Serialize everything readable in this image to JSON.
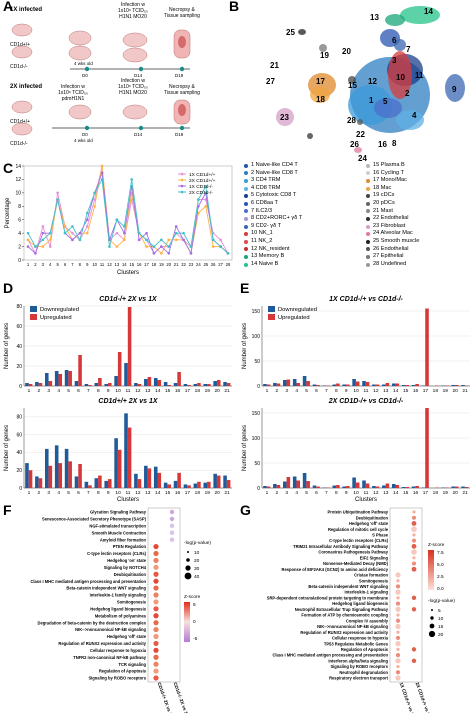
{
  "panels": {
    "a": "A",
    "b": "B",
    "c": "C",
    "d": "D",
    "e": "E",
    "f": "F",
    "g": "G"
  },
  "panel_a": {
    "row1": {
      "label": "1X infected",
      "pig_top": "CD1d+/+",
      "pig_bottom": "CD1d-/-",
      "step1": "Infection w\n1x10⁶ TCID₅₀\nH1N1 MO20",
      "step2": "Necropsy &\nTissue sampling",
      "timeline": [
        "D0",
        "D14",
        "D19"
      ],
      "age": "4 wks old"
    },
    "row2": {
      "label": "2X infected",
      "pig_top": "CD1d+/+",
      "pig_bottom": "CD1d-/-",
      "step0": "Infection w\n1x10⁶ TCID₅₀\npdmH1N1",
      "step1": "Infection w\n1x10⁶ TCID₅₀\nH1N1 MO20",
      "step2": "Necropsy &\nTissue sampling",
      "timeline": [
        "D0",
        "D14",
        "D19"
      ],
      "age": "4 wks old"
    }
  },
  "panel_b": {
    "cluster_labels": [
      "1",
      "2",
      "3",
      "4",
      "5",
      "6",
      "7",
      "8",
      "9",
      "10",
      "11",
      "12",
      "13",
      "14",
      "15",
      "16",
      "17",
      "18",
      "19",
      "20",
      "21",
      "22",
      "23",
      "24",
      "25",
      "26",
      "27",
      "28"
    ],
    "legend_left": [
      "1 Naive-like CD4 T",
      "2 Naive-like CD8 T",
      "3 CD4 TRM",
      "4 CD8 TRM",
      "5 Cytotoxic CD8 T",
      "6 CD8aa T",
      "7 ILC2/3",
      "8 CD2+RORC+ γδ T",
      "9 CD2- γδ T",
      "10 NK_1",
      "11 NK_2",
      "12 NK_resident",
      "13 Memory B",
      "14 Naive B"
    ],
    "legend_right": [
      "15 Plasma B",
      "16 Cycling T",
      "17 Mono/Mac",
      "18 Mac",
      "19 cDCs",
      "20 pDCs",
      "21 Mast",
      "22 Endothelial",
      "23 Fibroblast",
      "24 Alveolar Mac",
      "25 Smooth muscle",
      "26 Endothelial",
      "27 Epithelial",
      "28 Undefined"
    ],
    "colors": [
      "#1f5aa6",
      "#2f7fc0",
      "#3a9ad9",
      "#5fb0e6",
      "#1c3f8a",
      "#2a56b0",
      "#4b6fcb",
      "#9c9cd6",
      "#3b67b1",
      "#d73b3b",
      "#e0484a",
      "#c92d2d",
      "#1aa57a",
      "#26c38a",
      "#b9b9b9",
      "#cfcfcf",
      "#e08a2c",
      "#f0a340",
      "#444444",
      "#666666",
      "#888888",
      "#333333",
      "#d6a0c8",
      "#e07aa0",
      "#222222",
      "#555555",
      "#777777",
      "#999999"
    ]
  },
  "panel_c": {
    "ylabel": "Percentage",
    "xlabel": "Clusters",
    "legend": [
      "1X CD1d+/+",
      "2X CD1d+/+",
      "1X CD1d-/-",
      "2X CD1d-/-"
    ]
  },
  "panel_d": {
    "top_title": "CD1d-/+ 2X vs 1X",
    "bottom_title": "CD1d+/+ 2X vs 1X",
    "legend": [
      "Downregulated",
      "Upregulated"
    ],
    "ylabel": "Number of genes",
    "xlabel": "Clusters"
  },
  "panel_e": {
    "top_title": "1X CD1d-/+ vs CD1d-/-",
    "bottom_title": "2X CD1D-/+ vs CD1d-/-",
    "legend": [
      "Downregulated",
      "Upregulated"
    ],
    "ylabel": "Number of genes",
    "xlabel": "Clusters"
  },
  "panel_f": {
    "pathways": [
      "Glycation Signaling Pathway",
      "Senescence-Associated Secretory Phenotype (SASP)",
      "NGF-stimulated transcription",
      "Smooth Muscle Contraction",
      "Amyloid fiber formation",
      "PTEN Regulation",
      "C-type lectin receptors (CLRs)",
      "Hedgehog 'on' state",
      "Signaling by NOTCH4",
      "Deubiquitination",
      "Class I MHC mediated antigen processing and presentation",
      "Beta-catenin independent WNT signaling",
      "Interleukin-1 family signaling",
      "Somitogenesis",
      "Hedgehog ligand biogenesis",
      "Metabolism of polyamines",
      "Degradation of beta-catenin by the destruction complex",
      "NIK-->noncanonical NF-kB signaling",
      "Hedgehog 'off' state",
      "Regulation of RUNX2 expression and activity",
      "Cellular response to hypoxia",
      "TNFR2 non-canonical NF-kB pathway",
      "TCR signaling",
      "Regulation of Apoptosis",
      "Signaling by ROBO receptors"
    ],
    "columns": [
      "CD1d-/+ 2X vs 1X",
      "CD1d-/- 2X vs 1X"
    ],
    "legend_size_title": "-log(p-value)",
    "legend_sizes": [
      "10",
      "20",
      "30",
      "40"
    ],
    "legend_color_title": "Z-score",
    "legend_colors": [
      "5",
      "0",
      "-5"
    ]
  },
  "panel_g": {
    "pathways": [
      "Protein Ubiquitination Pathway",
      "Deubiquitination",
      "Hedgehog 'off' state",
      "Regulation of mitotic cell cycle",
      "S Phase",
      "C-type lectin receptors (CLRs)",
      "TRIM21 Intracellular Antibody Signaling Pathway",
      "Coronavirus Pathogenesis Pathway",
      "EIF2 Signaling",
      "Nonsense-Mediated Decay (NMD)",
      "Response of EIF2AK4 (GCN2) to amino acid deficiency",
      "Cristae formation",
      "Somitogenesis",
      "Beta-catenin independent WNT signaling",
      "Interleukin-1 signaling",
      "SRP-dependent cotranslational protein targeting to membrane",
      "Hedgehog ligand biogenesis",
      "Neutrophil Extracellular Trap Signaling Pathway",
      "Formation of ATP by chemiosmotic coupling",
      "Complex IV assembly",
      "NIK-->noncanonical NF-kB signaling",
      "Regulation of RUNX2 expression and activity",
      "Cellular response to hypoxia",
      "TP53 Regulates Metabolic Genes",
      "Regulation of Apoptosis",
      "Class I MHC mediated antigen processing and presentation",
      "Interferon alpha/beta signaling",
      "Signaling by ROBO receptors",
      "Neutrophil degranulation",
      "Respiratory electron transport"
    ],
    "columns": [
      "1X CD1d-/+ vs CD1d-/-",
      "2X CD1d-/+ vs CD1d-/-"
    ],
    "legend_color_title": "Z-score",
    "legend_colors": [
      "7.5",
      "5.0",
      "2.5",
      "0.0"
    ],
    "legend_size_title": "-log(p-value)",
    "legend_sizes": [
      "5",
      "10",
      "15",
      "20"
    ]
  },
  "chart_data": [
    {
      "type": "line",
      "panel": "C",
      "xlabel": "Clusters",
      "ylabel": "Percentage",
      "ylim": [
        0,
        14
      ],
      "x": [
        1,
        2,
        3,
        4,
        5,
        6,
        7,
        8,
        9,
        10,
        11,
        12,
        13,
        14,
        15,
        16,
        17,
        18,
        19,
        20,
        21,
        22,
        23,
        24,
        25,
        26,
        27,
        28
      ],
      "series": [
        {
          "name": "1X CD1d+/+",
          "color": "#e98fd6",
          "values": [
            3,
            1,
            5,
            2,
            10,
            5,
            4,
            3,
            5,
            9,
            14,
            3,
            4,
            3,
            9,
            4,
            3,
            1,
            2,
            2,
            4,
            3,
            2,
            9,
            9,
            4,
            3,
            1
          ]
        },
        {
          "name": "2X CD1d+/+",
          "color": "#ffb347",
          "values": [
            3,
            2,
            2,
            3,
            9,
            5,
            3,
            4,
            4,
            8,
            14,
            3,
            2,
            3,
            10,
            4,
            2,
            2,
            1,
            3,
            3,
            3,
            1,
            7,
            8,
            2,
            2,
            1
          ]
        },
        {
          "name": "1X CD1d-/-",
          "color": "#a46de8",
          "values": [
            2,
            1,
            4,
            4,
            9,
            4,
            3,
            4,
            6,
            10,
            13,
            3,
            6,
            4,
            11,
            3,
            4,
            1,
            2,
            1,
            5,
            3,
            1,
            8,
            10,
            3,
            2,
            1
          ]
        },
        {
          "name": "2X CD1d-/-",
          "color": "#40c2c8",
          "values": [
            4,
            2,
            3,
            4,
            9,
            4,
            5,
            3,
            7,
            10,
            12,
            2,
            6,
            5,
            12,
            4,
            3,
            2,
            3,
            2,
            4,
            4,
            2,
            9,
            11,
            3,
            2,
            1
          ]
        }
      ]
    },
    {
      "type": "bar",
      "panel": "D-top",
      "title": "CD1d-/+ 2X vs 1X",
      "xlabel": "Clusters",
      "ylabel": "Number of genes",
      "categories": [
        "1",
        "2",
        "3",
        "4",
        "5",
        "6",
        "7",
        "8",
        "9",
        "10",
        "11",
        "12",
        "13",
        "14",
        "15",
        "16",
        "17",
        "18",
        "19",
        "20",
        "21"
      ],
      "series": [
        {
          "name": "Downregulated",
          "color": "#1f5a99",
          "values": [
            3,
            4,
            13,
            15,
            16,
            5,
            2,
            3,
            2,
            10,
            23,
            3,
            7,
            8,
            4,
            3,
            2,
            2,
            2,
            5,
            4
          ]
        },
        {
          "name": "Upregulated",
          "color": "#d6383a",
          "values": [
            2,
            3,
            5,
            12,
            15,
            31,
            1,
            8,
            3,
            34,
            79,
            2,
            9,
            6,
            1,
            14,
            1,
            3,
            2,
            6,
            3
          ]
        }
      ]
    },
    {
      "type": "bar",
      "panel": "D-bottom",
      "title": "CD1d+/+ 2X vs 1X",
      "xlabel": "Clusters",
      "ylabel": "Number of genes",
      "categories": [
        "1",
        "2",
        "3",
        "4",
        "5",
        "6",
        "7",
        "8",
        "9",
        "10",
        "11",
        "12",
        "13",
        "14",
        "15",
        "16",
        "17",
        "18",
        "19",
        "20",
        "21"
      ],
      "series": [
        {
          "name": "Downregulated",
          "color": "#1f5a99",
          "values": [
            28,
            13,
            44,
            48,
            44,
            13,
            7,
            11,
            8,
            56,
            84,
            16,
            25,
            24,
            6,
            8,
            4,
            5,
            6,
            16,
            14
          ]
        },
        {
          "name": "Upregulated",
          "color": "#d6383a",
          "values": [
            20,
            11,
            25,
            28,
            30,
            27,
            3,
            14,
            10,
            43,
            68,
            10,
            22,
            17,
            4,
            17,
            3,
            7,
            7,
            14,
            9
          ]
        }
      ]
    },
    {
      "type": "bar",
      "panel": "E-top",
      "title": "1X CD1d-/+ vs CD1d-/-",
      "xlabel": "Clusters",
      "ylabel": "Number of genes",
      "categories": [
        "1",
        "2",
        "3",
        "4",
        "5",
        "6",
        "7",
        "8",
        "9",
        "10",
        "11",
        "12",
        "13",
        "14",
        "15",
        "16",
        "17",
        "18",
        "19",
        "20",
        "21"
      ],
      "series": [
        {
          "name": "Downregulated",
          "color": "#1f5a99",
          "values": [
            4,
            6,
            12,
            14,
            20,
            3,
            1,
            3,
            3,
            14,
            10,
            3,
            3,
            5,
            2,
            2,
            1,
            0,
            1,
            2,
            2
          ]
        },
        {
          "name": "Upregulated",
          "color": "#d6383a",
          "values": [
            3,
            5,
            13,
            6,
            10,
            2,
            1,
            5,
            3,
            9,
            8,
            3,
            6,
            5,
            2,
            4,
            155,
            1,
            1,
            2,
            1
          ]
        }
      ]
    },
    {
      "type": "bar",
      "panel": "E-bottom",
      "title": "2X CD1D-/+ vs CD1d-/-",
      "xlabel": "Clusters",
      "ylabel": "Number of genes",
      "categories": [
        "1",
        "2",
        "3",
        "4",
        "5",
        "6",
        "7",
        "8",
        "9",
        "10",
        "11",
        "12",
        "13",
        "14",
        "15",
        "16",
        "17",
        "18",
        "19",
        "20",
        "21"
      ],
      "series": [
        {
          "name": "Downregulated",
          "color": "#1f5a99",
          "values": [
            4,
            8,
            13,
            23,
            30,
            5,
            1,
            5,
            3,
            21,
            15,
            4,
            5,
            8,
            2,
            3,
            1,
            0,
            1,
            3,
            3
          ]
        },
        {
          "name": "Upregulated",
          "color": "#d6383a",
          "values": [
            3,
            6,
            22,
            15,
            14,
            3,
            1,
            6,
            4,
            11,
            9,
            3,
            9,
            6,
            2,
            4,
            160,
            1,
            1,
            3,
            2
          ]
        }
      ]
    }
  ]
}
